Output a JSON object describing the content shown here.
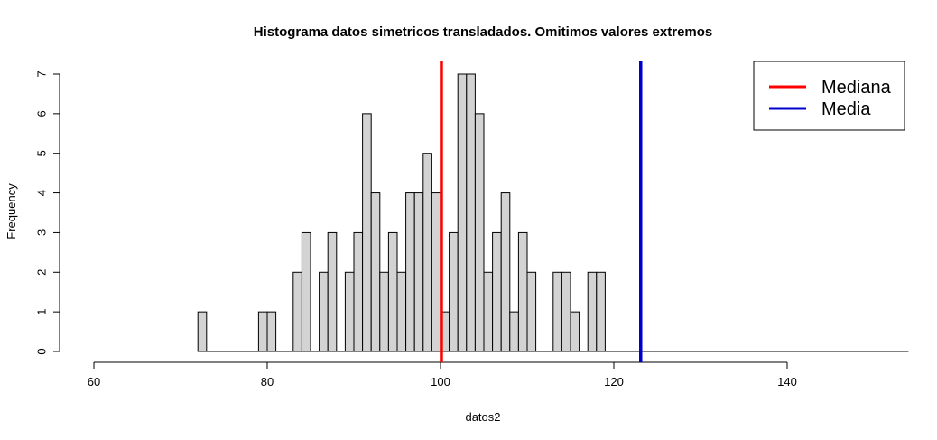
{
  "chart_data": {
    "type": "bar",
    "title": "Histograma datos simetricos transladados. Omitimos valores extremos",
    "xlabel": "datos2",
    "ylabel": "Frequency",
    "xlim": [
      60,
      154
    ],
    "ylim": [
      0,
      7
    ],
    "x_ticks": [
      60,
      80,
      100,
      120,
      140
    ],
    "y_ticks": [
      0,
      1,
      2,
      3,
      4,
      5,
      6,
      7
    ],
    "bin_width": 1,
    "bins": [
      {
        "start": 72,
        "count": 1
      },
      {
        "start": 79,
        "count": 1
      },
      {
        "start": 80,
        "count": 1
      },
      {
        "start": 83,
        "count": 2
      },
      {
        "start": 84,
        "count": 3
      },
      {
        "start": 86,
        "count": 2
      },
      {
        "start": 87,
        "count": 3
      },
      {
        "start": 89,
        "count": 2
      },
      {
        "start": 90,
        "count": 3
      },
      {
        "start": 91,
        "count": 6
      },
      {
        "start": 92,
        "count": 4
      },
      {
        "start": 93,
        "count": 2
      },
      {
        "start": 94,
        "count": 3
      },
      {
        "start": 95,
        "count": 2
      },
      {
        "start": 96,
        "count": 4
      },
      {
        "start": 97,
        "count": 4
      },
      {
        "start": 98,
        "count": 5
      },
      {
        "start": 99,
        "count": 4
      },
      {
        "start": 100,
        "count": 1
      },
      {
        "start": 101,
        "count": 3
      },
      {
        "start": 102,
        "count": 7
      },
      {
        "start": 103,
        "count": 7
      },
      {
        "start": 104,
        "count": 6
      },
      {
        "start": 105,
        "count": 2
      },
      {
        "start": 106,
        "count": 3
      },
      {
        "start": 107,
        "count": 4
      },
      {
        "start": 108,
        "count": 1
      },
      {
        "start": 109,
        "count": 3
      },
      {
        "start": 110,
        "count": 2
      },
      {
        "start": 113,
        "count": 2
      },
      {
        "start": 114,
        "count": 2
      },
      {
        "start": 115,
        "count": 1
      },
      {
        "start": 117,
        "count": 2
      },
      {
        "start": 118,
        "count": 2
      }
    ],
    "bar_fill": "#d3d3d3",
    "vlines": [
      {
        "name": "Mediana",
        "x": 100.1,
        "color": "#ff0000"
      },
      {
        "name": "Media",
        "x": 123.1,
        "color": "#0000cd"
      }
    ],
    "legend": {
      "placement": "top-right",
      "entries": [
        {
          "label": "Mediana",
          "color": "#ff0000"
        },
        {
          "label": "Media",
          "color": "#0000cd"
        }
      ]
    },
    "grid": false
  }
}
